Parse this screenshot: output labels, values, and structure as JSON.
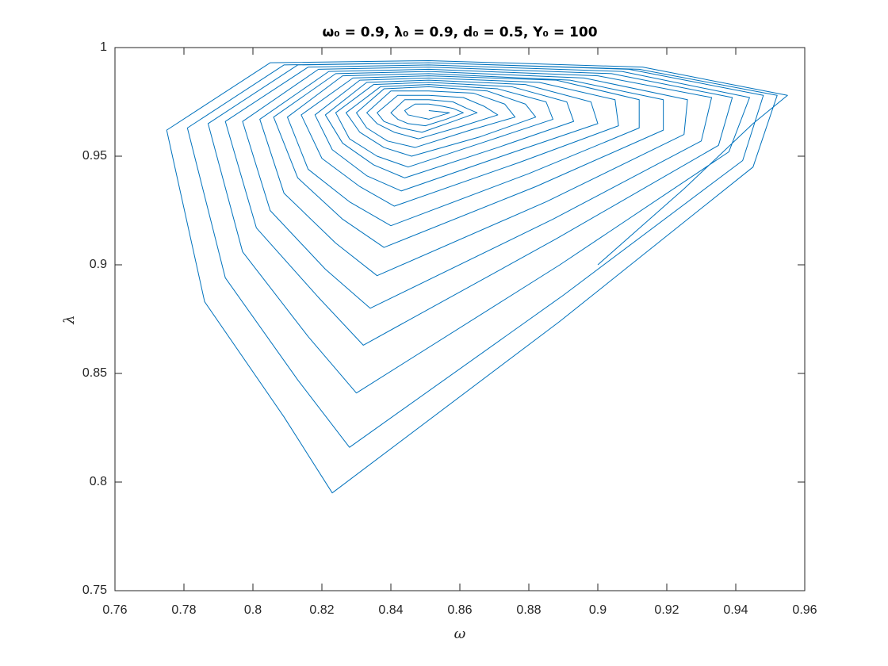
{
  "chart_data": {
    "type": "line",
    "title": "ω₀ = 0.9, λ₀ = 0.9, d₀ = 0.5, Y₀ = 100",
    "x_label": "ω",
    "y_label": "λ",
    "xlim": [
      0.76,
      0.96
    ],
    "xticks": [
      0.76,
      0.78,
      0.8,
      0.82,
      0.84,
      0.86,
      0.88,
      0.9,
      0.92,
      0.94,
      0.96
    ],
    "ylim": [
      0.75,
      1
    ],
    "yticks": [
      0.75,
      0.8,
      0.85,
      0.9,
      0.95,
      1
    ],
    "grid": false,
    "series": [
      {
        "color": "#0072bd",
        "x": [
          0.9,
          0.925,
          0.945,
          0.955,
          0.913,
          0.851,
          0.805,
          0.775,
          0.786,
          0.809,
          0.823,
          0.889,
          0.945,
          0.952,
          0.912,
          0.851,
          0.809,
          0.781,
          0.792,
          0.813,
          0.828,
          0.89,
          0.942,
          0.948,
          0.909,
          0.851,
          0.813,
          0.787,
          0.797,
          0.816,
          0.83,
          0.889,
          0.938,
          0.944,
          0.907,
          0.851,
          0.816,
          0.792,
          0.801,
          0.819,
          0.832,
          0.888,
          0.935,
          0.939,
          0.904,
          0.851,
          0.819,
          0.797,
          0.805,
          0.821,
          0.834,
          0.887,
          0.93,
          0.933,
          0.9,
          0.851,
          0.822,
          0.802,
          0.809,
          0.824,
          0.836,
          0.885,
          0.925,
          0.926,
          0.896,
          0.851,
          0.824,
          0.806,
          0.813,
          0.826,
          0.838,
          0.882,
          0.919,
          0.919,
          0.892,
          0.851,
          0.826,
          0.81,
          0.816,
          0.828,
          0.84,
          0.88,
          0.912,
          0.912,
          0.888,
          0.851,
          0.829,
          0.814,
          0.82,
          0.831,
          0.841,
          0.877,
          0.906,
          0.905,
          0.883,
          0.851,
          0.831,
          0.818,
          0.823,
          0.833,
          0.843,
          0.874,
          0.9,
          0.898,
          0.879,
          0.851,
          0.833,
          0.821,
          0.826,
          0.835,
          0.844,
          0.871,
          0.893,
          0.891,
          0.875,
          0.851,
          0.835,
          0.824,
          0.828,
          0.836,
          0.845,
          0.868,
          0.887,
          0.885,
          0.871,
          0.851,
          0.837,
          0.827,
          0.831,
          0.838,
          0.846,
          0.866,
          0.882,
          0.879,
          0.868,
          0.851,
          0.838,
          0.83,
          0.833,
          0.839,
          0.847,
          0.863,
          0.876,
          0.873,
          0.864,
          0.851,
          0.84,
          0.833,
          0.836,
          0.841,
          0.848,
          0.861,
          0.871,
          0.867,
          0.861,
          0.851,
          0.842,
          0.836,
          0.838,
          0.843,
          0.849,
          0.858,
          0.865,
          0.862,
          0.858,
          0.851,
          0.844,
          0.84,
          0.842,
          0.845,
          0.85,
          0.856,
          0.861,
          0.858,
          0.855,
          0.851,
          0.847,
          0.844,
          0.845,
          0.848,
          0.851,
          0.855,
          0.857,
          0.851
        ],
        "values": [
          0.9,
          0.935,
          0.965,
          0.978,
          0.991,
          0.994,
          0.993,
          0.962,
          0.883,
          0.83,
          0.795,
          0.874,
          0.945,
          0.978,
          0.99,
          0.993,
          0.992,
          0.963,
          0.894,
          0.847,
          0.816,
          0.886,
          0.948,
          0.978,
          0.99,
          0.993,
          0.992,
          0.965,
          0.906,
          0.867,
          0.841,
          0.9,
          0.952,
          0.977,
          0.989,
          0.992,
          0.991,
          0.966,
          0.917,
          0.885,
          0.863,
          0.912,
          0.955,
          0.977,
          0.988,
          0.991,
          0.99,
          0.966,
          0.925,
          0.898,
          0.88,
          0.921,
          0.957,
          0.977,
          0.987,
          0.99,
          0.989,
          0.967,
          0.933,
          0.91,
          0.895,
          0.929,
          0.96,
          0.976,
          0.986,
          0.989,
          0.988,
          0.968,
          0.94,
          0.921,
          0.908,
          0.936,
          0.962,
          0.976,
          0.985,
          0.988,
          0.987,
          0.968,
          0.944,
          0.929,
          0.918,
          0.942,
          0.963,
          0.976,
          0.985,
          0.987,
          0.986,
          0.969,
          0.949,
          0.936,
          0.927,
          0.947,
          0.964,
          0.976,
          0.984,
          0.986,
          0.985,
          0.969,
          0.953,
          0.941,
          0.934,
          0.951,
          0.965,
          0.975,
          0.983,
          0.985,
          0.984,
          0.969,
          0.956,
          0.946,
          0.94,
          0.954,
          0.966,
          0.975,
          0.982,
          0.984,
          0.983,
          0.97,
          0.958,
          0.95,
          0.945,
          0.957,
          0.967,
          0.975,
          0.981,
          0.983,
          0.982,
          0.97,
          0.961,
          0.954,
          0.95,
          0.959,
          0.968,
          0.974,
          0.98,
          0.982,
          0.981,
          0.97,
          0.963,
          0.957,
          0.954,
          0.962,
          0.968,
          0.974,
          0.979,
          0.98,
          0.98,
          0.97,
          0.965,
          0.961,
          0.958,
          0.964,
          0.969,
          0.973,
          0.977,
          0.978,
          0.978,
          0.97,
          0.966,
          0.963,
          0.961,
          0.966,
          0.97,
          0.972,
          0.975,
          0.976,
          0.976,
          0.97,
          0.967,
          0.965,
          0.964,
          0.967,
          0.97,
          0.972,
          0.973,
          0.974,
          0.974,
          0.971,
          0.969,
          0.968,
          0.967,
          0.969,
          0.97,
          0.971
        ]
      }
    ]
  }
}
